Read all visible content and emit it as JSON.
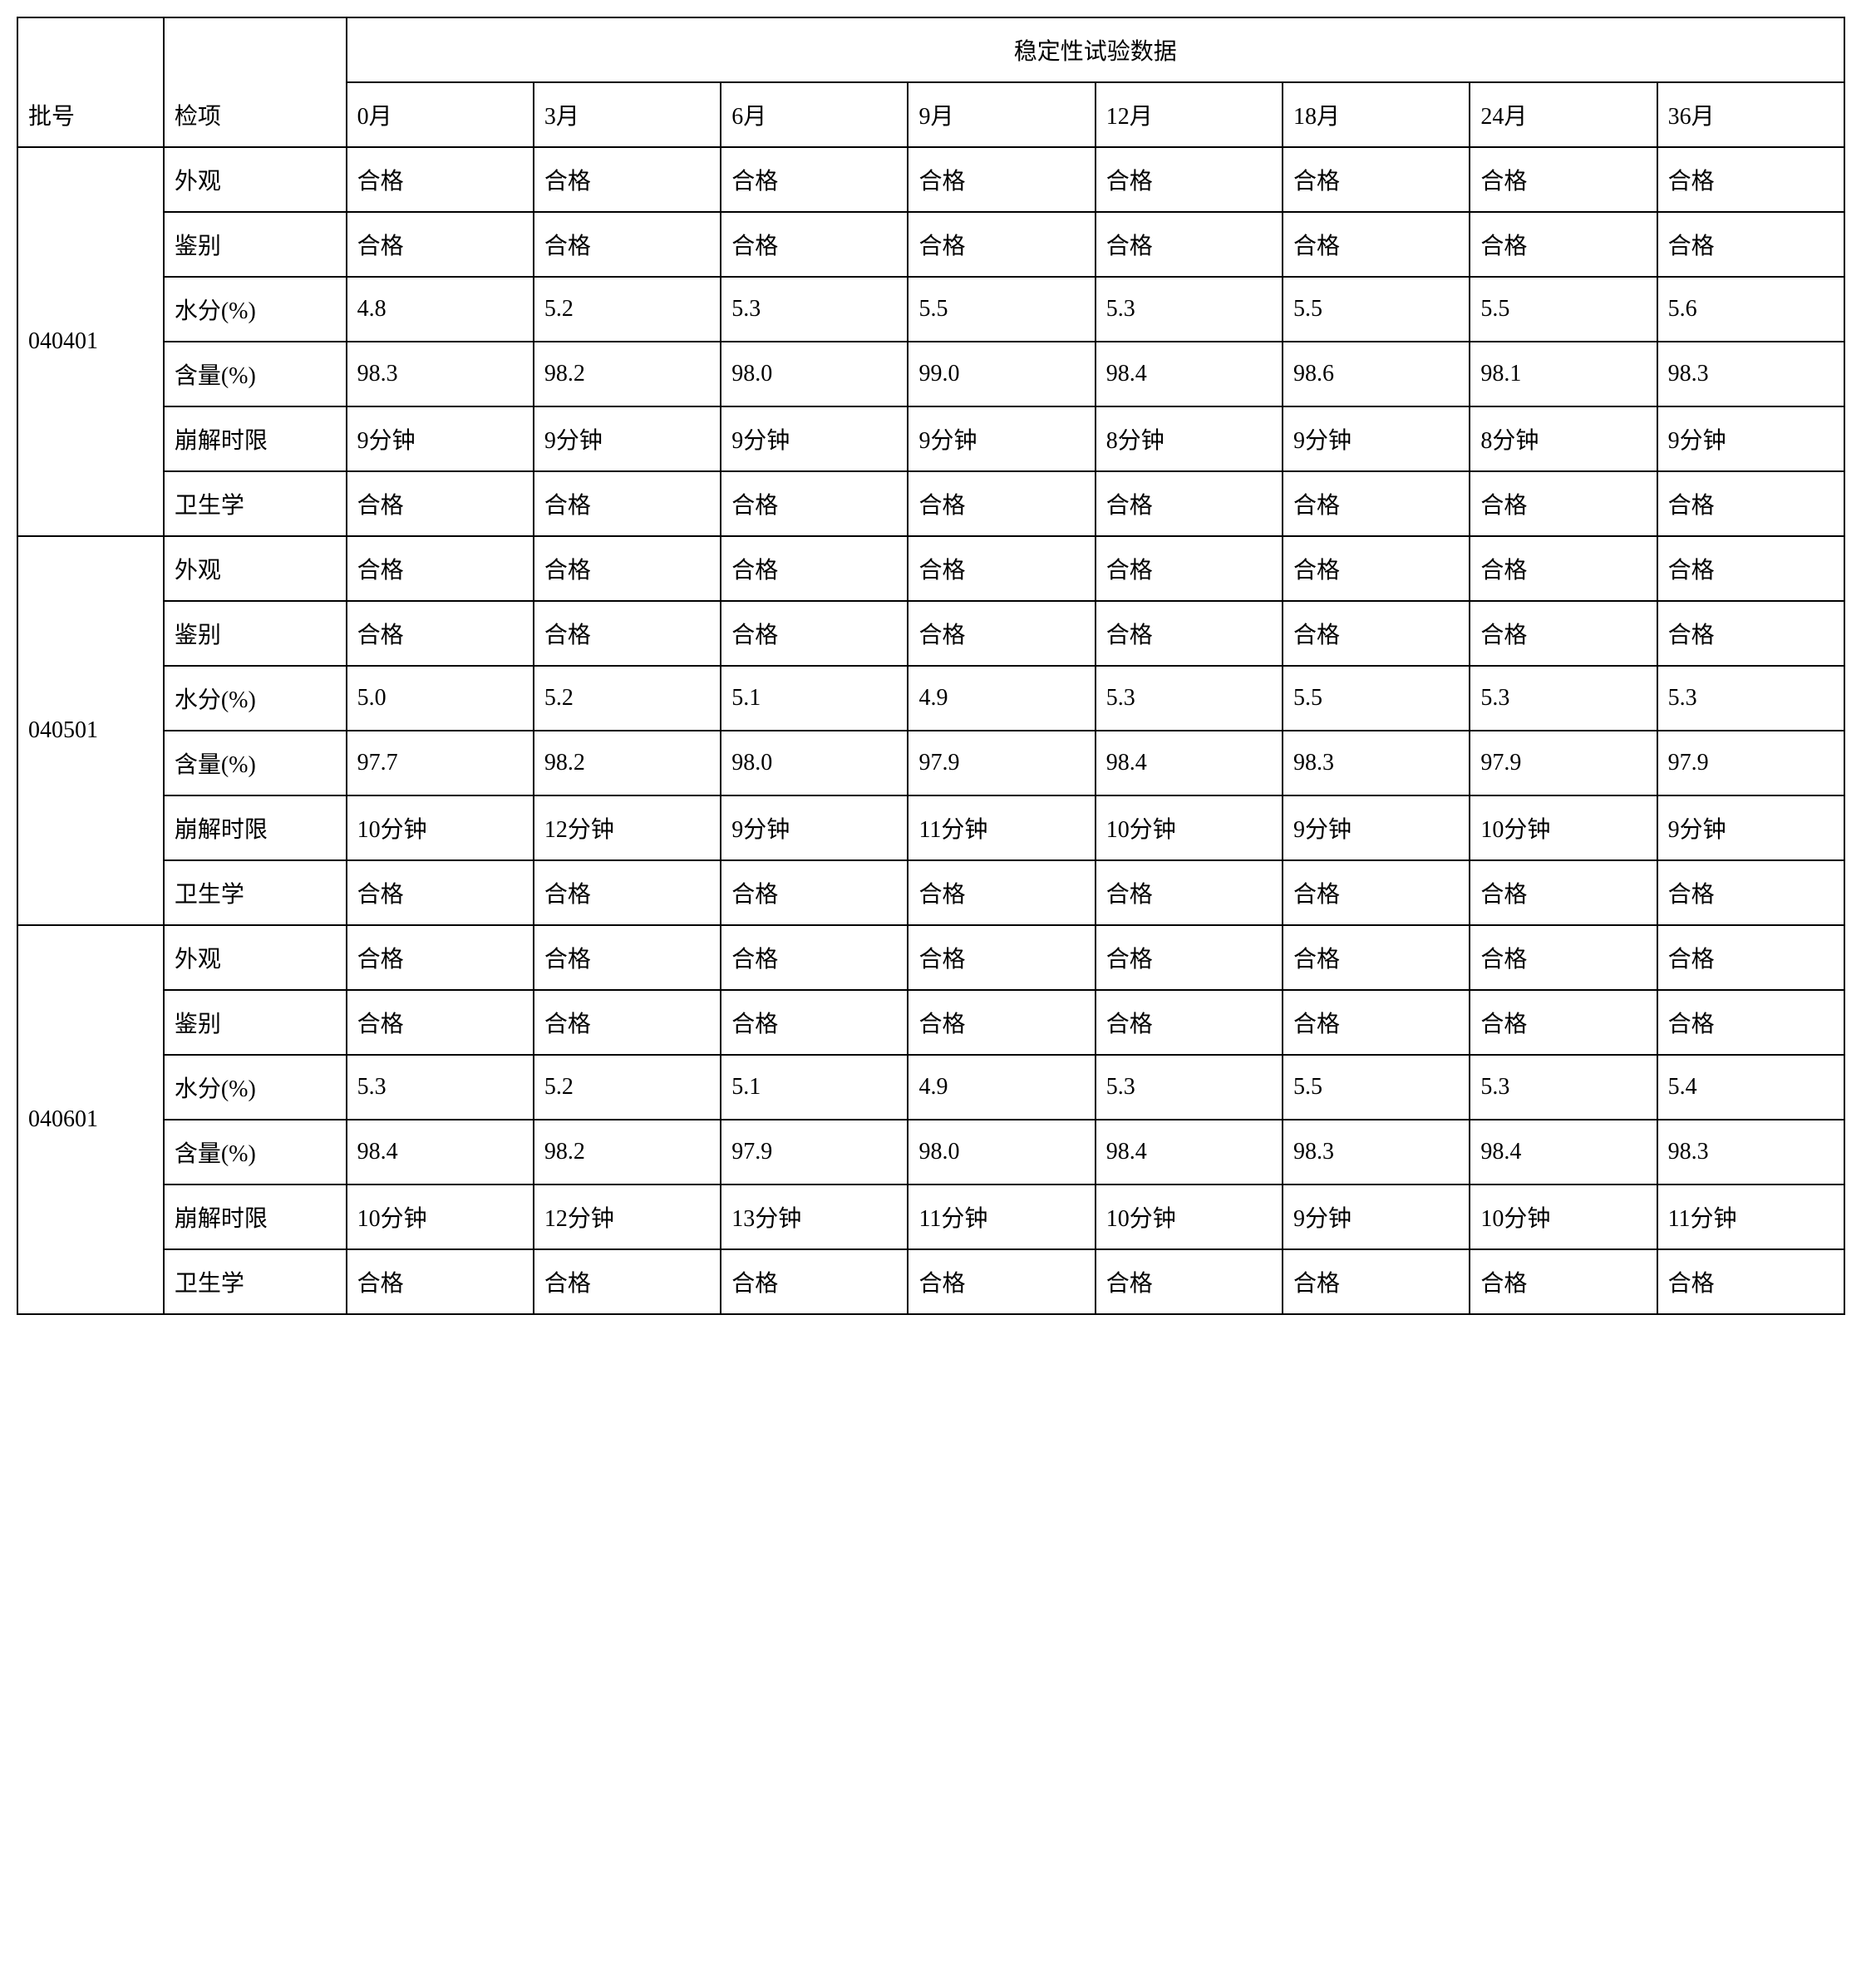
{
  "table": {
    "headers": {
      "batch_no": "批号",
      "test_item": "检项",
      "data_group": "稳定性试验数据",
      "time_points": [
        "0月",
        "3月",
        "6月",
        "9月",
        "12月",
        "18月",
        "24月",
        "36月"
      ]
    },
    "batches": [
      {
        "id": "040401",
        "rows": [
          {
            "item": "外观",
            "values": [
              "合格",
              "合格",
              "合格",
              "合格",
              "合格",
              "合格",
              "合格",
              "合格"
            ]
          },
          {
            "item": "鉴别",
            "values": [
              "合格",
              "合格",
              "合格",
              "合格",
              "合格",
              "合格",
              "合格",
              "合格"
            ]
          },
          {
            "item": "水分(%)",
            "values": [
              "4.8",
              "5.2",
              "5.3",
              "5.5",
              "5.3",
              "5.5",
              "5.5",
              "5.6"
            ]
          },
          {
            "item": "含量(%)",
            "values": [
              "98.3",
              "98.2",
              "98.0",
              "99.0",
              "98.4",
              "98.6",
              "98.1",
              "98.3"
            ]
          },
          {
            "item": "崩解时限",
            "values": [
              "9分钟",
              "9分钟",
              "9分钟",
              "9分钟",
              "8分钟",
              "9分钟",
              "8分钟",
              "9分钟"
            ]
          },
          {
            "item": "卫生学",
            "values": [
              "合格",
              "合格",
              "合格",
              "合格",
              "合格",
              "合格",
              "合格",
              "合格"
            ]
          }
        ]
      },
      {
        "id": "040501",
        "rows": [
          {
            "item": "外观",
            "values": [
              "合格",
              "合格",
              "合格",
              "合格",
              "合格",
              "合格",
              "合格",
              "合格"
            ]
          },
          {
            "item": "鉴别",
            "values": [
              "合格",
              "合格",
              "合格",
              "合格",
              "合格",
              "合格",
              "合格",
              "合格"
            ]
          },
          {
            "item": "水分(%)",
            "values": [
              "5.0",
              "5.2",
              "5.1",
              "4.9",
              "5.3",
              "5.5",
              "5.3",
              "5.3"
            ]
          },
          {
            "item": "含量(%)",
            "values": [
              "97.7",
              "98.2",
              "98.0",
              "97.9",
              "98.4",
              "98.3",
              "97.9",
              "97.9"
            ]
          },
          {
            "item": "崩解时限",
            "values": [
              "10分钟",
              "12分钟",
              "9分钟",
              "11分钟",
              "10分钟",
              "9分钟",
              "10分钟",
              "9分钟"
            ]
          },
          {
            "item": "卫生学",
            "values": [
              "合格",
              "合格",
              "合格",
              "合格",
              "合格",
              "合格",
              "合格",
              "合格"
            ]
          }
        ]
      },
      {
        "id": "040601",
        "rows": [
          {
            "item": "外观",
            "values": [
              "合格",
              "合格",
              "合格",
              "合格",
              "合格",
              "合格",
              "合格",
              "合格"
            ]
          },
          {
            "item": "鉴别",
            "values": [
              "合格",
              "合格",
              "合格",
              "合格",
              "合格",
              "合格",
              "合格",
              "合格"
            ]
          },
          {
            "item": "水分(%)",
            "values": [
              "5.3",
              "5.2",
              "5.1",
              "4.9",
              "5.3",
              "5.5",
              "5.3",
              "5.4"
            ]
          },
          {
            "item": "含量(%)",
            "values": [
              "98.4",
              "98.2",
              "97.9",
              "98.0",
              "98.4",
              "98.3",
              "98.4",
              "98.3"
            ]
          },
          {
            "item": "崩解时限",
            "values": [
              "10分钟",
              "12分钟",
              "13分钟",
              "11分钟",
              "10分钟",
              "9分钟",
              "10分钟",
              "11分钟"
            ]
          },
          {
            "item": "卫生学",
            "values": [
              "合格",
              "合格",
              "合格",
              "合格",
              "合格",
              "合格",
              "合格",
              "合格"
            ]
          }
        ]
      }
    ],
    "styling": {
      "border_color": "#000000",
      "border_width": 2,
      "background_color": "#ffffff",
      "text_color": "#000000",
      "font_family": "SimSun",
      "font_size": 28,
      "cell_padding": 18
    }
  }
}
